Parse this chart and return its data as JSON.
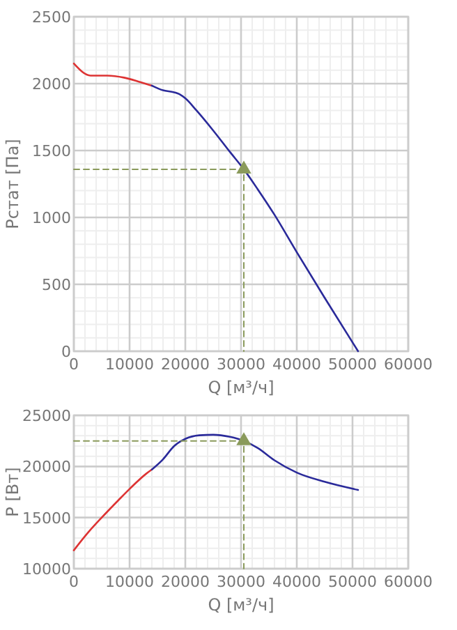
{
  "chart_data": [
    {
      "type": "line",
      "xlabel": "Q [м³/ч]",
      "ylabel": "Pстат [Па]",
      "xlim": [
        0,
        60000
      ],
      "ylim": [
        0,
        2500
      ],
      "xticks": [
        0,
        10000,
        20000,
        30000,
        40000,
        50000,
        60000
      ],
      "yticks": [
        0,
        500,
        1000,
        1500,
        2000,
        2500
      ],
      "grid": true,
      "series": [
        {
          "color": "#dd3333",
          "x": [
            0,
            3000,
            6000,
            9000,
            12000,
            14000
          ],
          "values": [
            2150,
            2060,
            2060,
            2045,
            2010,
            1985
          ]
        },
        {
          "color": "#2a2a9a",
          "x": [
            14000,
            16000,
            18000,
            19000,
            20000,
            22000,
            25000,
            28000,
            30500,
            33000,
            36000,
            40000,
            45000,
            51000
          ],
          "values": [
            1985,
            1950,
            1935,
            1920,
            1890,
            1800,
            1650,
            1490,
            1360,
            1210,
            1020,
            740,
            400,
            0
          ]
        },
        {
          "type": "line",
          "line_style": "dashed",
          "color": "#8a9a5b",
          "x": [
            0,
            30500,
            30500
          ],
          "values": [
            1360,
            1360,
            0
          ]
        },
        {
          "type": "scatter",
          "marker": "triangle",
          "color": "#8a9a5b",
          "x": [
            30500
          ],
          "values": [
            1360
          ]
        }
      ]
    },
    {
      "type": "line",
      "xlabel": "Q [м³/ч]",
      "ylabel": "P [Вт]",
      "xlim": [
        0,
        60000
      ],
      "ylim": [
        10000,
        25000
      ],
      "xticks": [
        0,
        10000,
        20000,
        30000,
        40000,
        50000,
        60000
      ],
      "yticks": [
        10000,
        15000,
        20000,
        25000
      ],
      "grid": true,
      "series": [
        {
          "color": "#dd3333",
          "x": [
            0,
            2500,
            5000,
            8000,
            10000,
            13000,
            14000
          ],
          "values": [
            11800,
            13500,
            15000,
            16700,
            17800,
            19300,
            19700
          ]
        },
        {
          "color": "#2a2a9a",
          "x": [
            14000,
            16000,
            18000,
            20000,
            22500,
            25000,
            28000,
            30500,
            33000,
            36000,
            40000,
            45000,
            51000
          ],
          "values": [
            19700,
            20700,
            22000,
            22700,
            23050,
            23100,
            22900,
            22500,
            21800,
            20600,
            19400,
            18500,
            17700
          ]
        },
        {
          "type": "line",
          "line_style": "dashed",
          "color": "#8a9a5b",
          "x": [
            0,
            30500,
            30500
          ],
          "values": [
            22500,
            22500,
            10000
          ]
        },
        {
          "type": "scatter",
          "marker": "triangle",
          "color": "#8a9a5b",
          "x": [
            30500
          ],
          "values": [
            22500
          ]
        }
      ]
    }
  ]
}
